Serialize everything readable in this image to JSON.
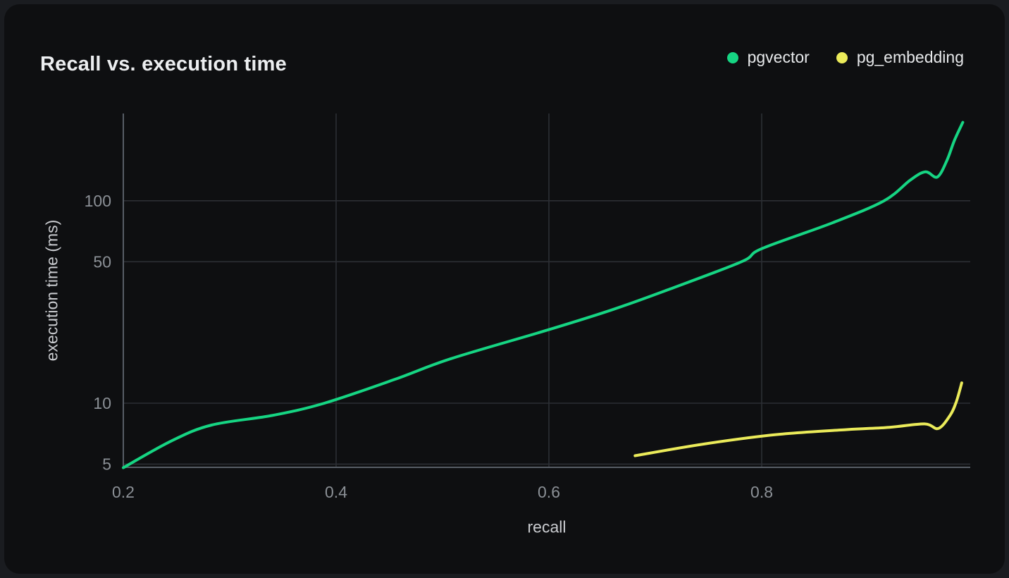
{
  "card": {
    "title": "Recall vs. execution time"
  },
  "legend": [
    {
      "label": "pgvector",
      "color": "#16d583"
    },
    {
      "label": "pg_embedding",
      "color": "#ebeb5a"
    }
  ],
  "axes": {
    "x_title": "recall",
    "y_title": "execution time (ms)"
  },
  "chart_data": {
    "type": "line",
    "title": "Recall vs. execution time",
    "xlabel": "recall",
    "ylabel": "execution time (ms)",
    "x_scale": "linear",
    "y_scale": "log",
    "xlim": [
      0.2,
      0.996
    ],
    "ylim": [
      4.82,
      270
    ],
    "x_ticks": [
      0.2,
      0.4,
      0.6,
      0.8
    ],
    "x_tick_labels": [
      "0.2",
      "0.4",
      "0.6",
      "0.8"
    ],
    "y_ticks": [
      5,
      10,
      50,
      100
    ],
    "y_tick_labels": [
      "5",
      "10",
      "50",
      "100"
    ],
    "grid": true,
    "legend_position": "top-right",
    "series": [
      {
        "name": "pgvector",
        "color": "#16d583",
        "points": [
          [
            0.2,
            4.8
          ],
          [
            0.245,
            6.5
          ],
          [
            0.283,
            7.8
          ],
          [
            0.34,
            8.7
          ],
          [
            0.389,
            10.0
          ],
          [
            0.455,
            13.1
          ],
          [
            0.508,
            16.6
          ],
          [
            0.599,
            23.0
          ],
          [
            0.66,
            29.0
          ],
          [
            0.714,
            36.7
          ],
          [
            0.781,
            50.0
          ],
          [
            0.8,
            58.0
          ],
          [
            0.867,
            78.0
          ],
          [
            0.915,
            100.0
          ],
          [
            0.94,
            127.0
          ],
          [
            0.954,
            139.0
          ],
          [
            0.965,
            131.0
          ],
          [
            0.974,
            158.0
          ],
          [
            0.981,
            198.0
          ],
          [
            0.989,
            244.0
          ]
        ]
      },
      {
        "name": "pg_embedding",
        "color": "#ebeb5a",
        "points": [
          [
            0.681,
            5.5
          ],
          [
            0.747,
            6.3
          ],
          [
            0.814,
            7.0
          ],
          [
            0.88,
            7.4
          ],
          [
            0.92,
            7.6
          ],
          [
            0.953,
            7.9
          ],
          [
            0.966,
            7.5
          ],
          [
            0.977,
            8.7
          ],
          [
            0.983,
            10.2
          ],
          [
            0.988,
            12.6
          ]
        ]
      }
    ]
  },
  "colors": {
    "outer_background": "#1a1c20",
    "card_background": "#0e0f11",
    "title_text": "#eceef0",
    "tick_text": "#8b9096",
    "axis_title_text": "#caccd0",
    "gridline": "#2c2f34",
    "axis_line": "#575d66"
  }
}
